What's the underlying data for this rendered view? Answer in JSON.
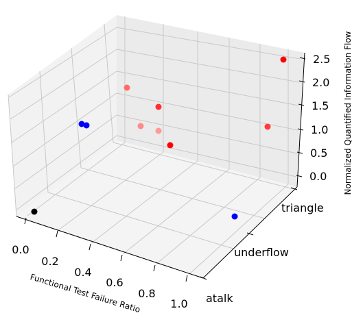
{
  "chart_data": {
    "type": "scatter",
    "projection": "3d",
    "title": "",
    "xlabel": "Functional Test Failure Ratio",
    "ylabel": "",
    "zlabel": "Normalized Quantified Information Flow",
    "x_ticks": [
      "0.0",
      "0.2",
      "0.4",
      "0.6",
      "0.8",
      "1.0"
    ],
    "xlim": [
      0,
      1
    ],
    "y_categories": [
      "atalk",
      "underflow",
      "triangle"
    ],
    "z_ticks": [
      "0.0",
      "0.5",
      "1.0",
      "1.5",
      "2.0",
      "2.5"
    ],
    "zlim": [
      0,
      2.6
    ],
    "grid": true,
    "points": [
      {
        "x": 0.0,
        "y": "atalk",
        "z": 0.0,
        "color": "#000000"
      },
      {
        "x": 0.45,
        "y": "atalk",
        "z": 2.0,
        "color": "#0000ff"
      },
      {
        "x": 0.48,
        "y": "atalk",
        "z": 1.95,
        "color": "#0000ff"
      },
      {
        "x": 1.0,
        "y": "underflow",
        "z": 0.0,
        "color": "#0000ff"
      },
      {
        "x": 0.58,
        "y": "triangle",
        "z": 0.6,
        "color": "#ff0000"
      },
      {
        "x": 0.56,
        "y": "triangle",
        "z": 1.25,
        "color": "#ff3030"
      },
      {
        "x": 0.52,
        "y": "triangle",
        "z": 1.0,
        "color": "#ff8a8a"
      },
      {
        "x": 0.66,
        "y": "triangle",
        "z": 0.9,
        "color": "#ff9a9a"
      },
      {
        "x": 0.35,
        "y": "triangle",
        "z": 2.0,
        "color": "#ff6a6a"
      },
      {
        "x": 0.95,
        "y": "triangle",
        "z": 2.5,
        "color": "#ff0000"
      },
      {
        "x": 1.0,
        "y": "triangle",
        "z": 1.35,
        "color": "#ff3c3c"
      }
    ]
  }
}
